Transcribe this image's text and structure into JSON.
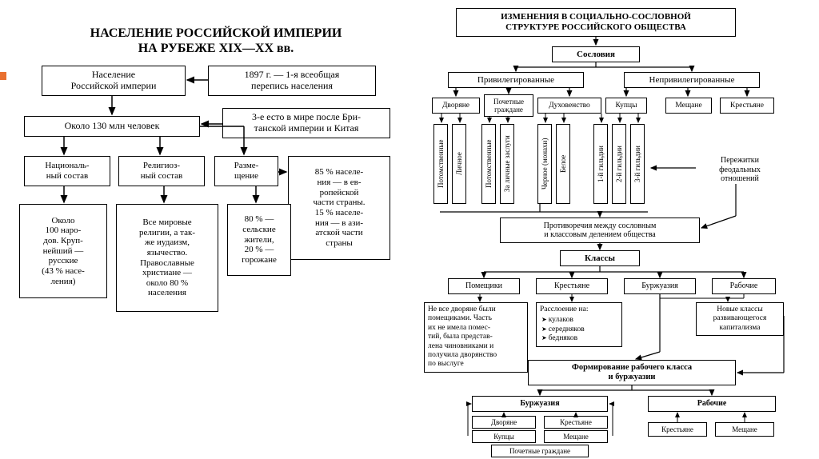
{
  "left": {
    "title": "НАСЕЛЕНИЕ РОССИЙСКОЙ ИМПЕРИИ\nНА РУБЕЖЕ XIX—XX вв.",
    "root": "Население\nРоссийской империи",
    "census": "1897 г. — 1-я всеобщая\nперепись населения",
    "total": "Около 130 млн человек",
    "rank": "3-е есто в мире после Бри-\nтанской империи и Китая",
    "national": "Националь-\nный состав",
    "religious": "Религиоз-\nный состав",
    "placement": "Разме-\nщение",
    "percent85": "85 % населе-\nния — в ев-\nропейской\nчасти страны.\n15 % населе-\nния — в ази-\nатской части\nстраны",
    "nationalDetail": "Около\n100 наро-\nдов. Круп-\nнейший —\nрусские\n(43 % насе-\nления)",
    "religiousDetail": "Все мировые\nрелигии, а так-\nже иудаизм,\nязычество.\nПравославные\nхристиане —\nоколо 80 %\nнаселения",
    "placementDetail": "80 % —\nсельские\nжители,\n20 % —\nгорожане"
  },
  "right": {
    "title": "ИЗМЕНЕНИЯ В СОЦИАЛЬНО-СОСЛОВНОЙ\nСТРУКТУРЕ РОССИЙСКОГО ОБЩЕСТВА",
    "estates": "Сословия",
    "priv": "Привилегированные",
    "nonpriv": "Непривилегированные",
    "nobles": "Дворяне",
    "honorCit": "Почетные\nграждане",
    "clergy": "Духовенство",
    "merchants": "Купцы",
    "townsmen": "Мещане",
    "peasants": "Крестьяне",
    "v1": "Потомственные",
    "v2": "Личное",
    "v3": "Потомственные",
    "v4": "За личные заслуги",
    "v5": "Черное (монахи)",
    "v6": "Белое",
    "v7": "1-й гильдии",
    "v8": "2-й гильдии",
    "v9": "3-й гильдии",
    "feudal": "Пережитки\nфеодальных\nотношений",
    "contradict": "Противоречия между сословным\nи классовым делением общества",
    "classes": "Классы",
    "landlords": "Помещики",
    "peasants2": "Крестьяне",
    "bourgeois": "Буржуазия",
    "workers": "Рабочие",
    "note1": "Не все дворяне были\nпомещиками. Часть\nих не имела помес-\nтий, была представ-\nлена чиновниками и\nполучила дворянство\nпо выслуге",
    "note2head": "Расслоение на:",
    "note2items": [
      "кулаков",
      "середняков",
      "бедняков"
    ],
    "note3": "Новые классы\nразвивающегося\nкапитализма",
    "formation": "Формирование рабочего класса\nи буржуазии",
    "bourgeois2": "Буржуазия",
    "workers2": "Рабочие",
    "b_nobles": "Дворяне",
    "b_peasants": "Крестьяне",
    "b_merchants": "Купцы",
    "b_townsmen": "Мещане",
    "b_honor": "Почетные граждане",
    "w_peasants": "Крестьяне",
    "w_townsmen": "Мещане"
  },
  "style": {
    "bg": "#ffffff",
    "stroke": "#000000",
    "markerColor": "#e97030",
    "fontBase": 11
  }
}
